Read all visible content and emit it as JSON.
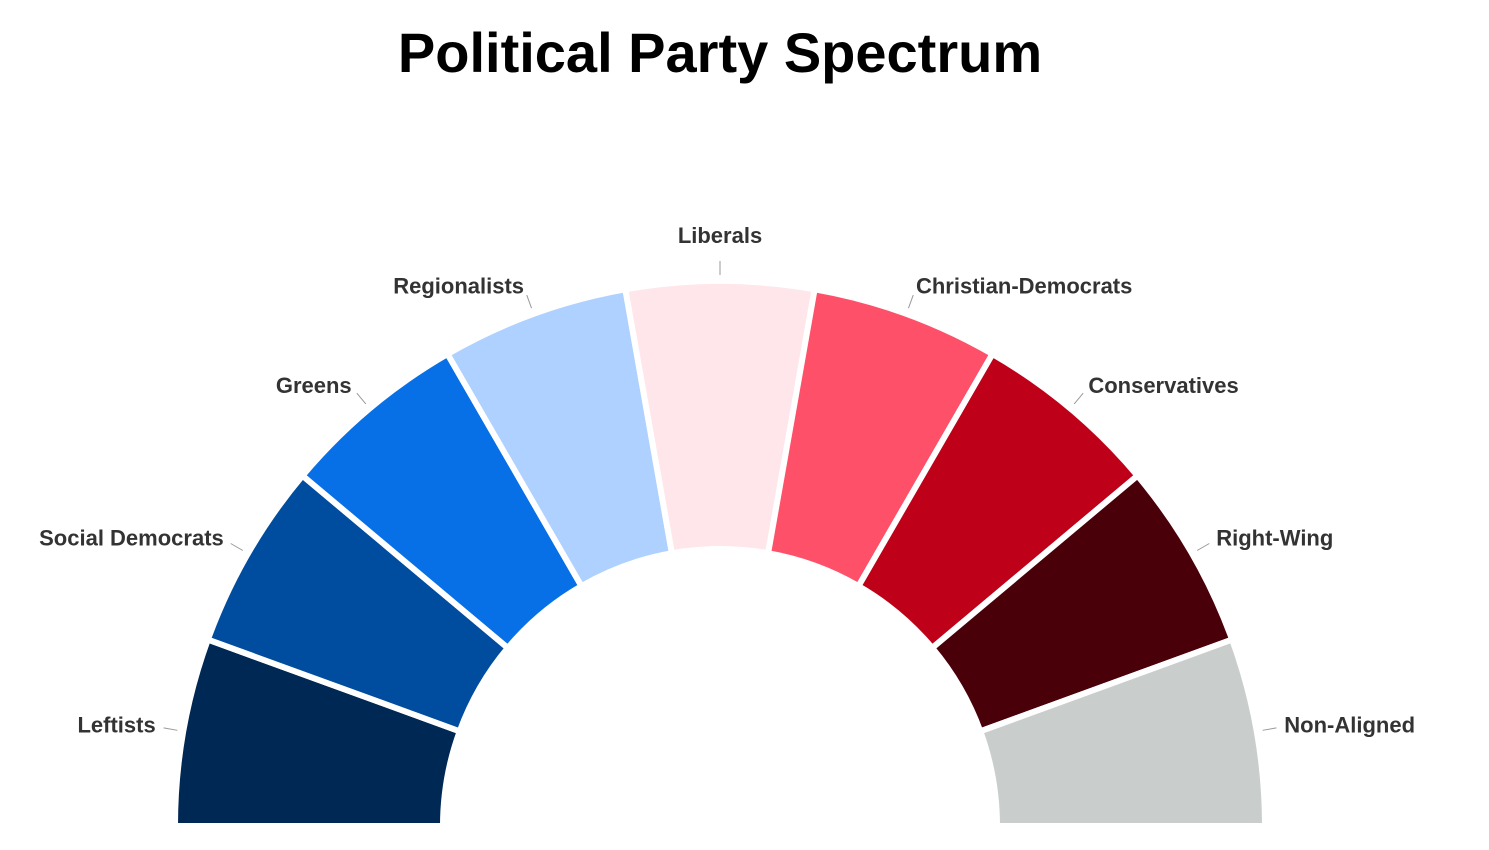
{
  "chart_data": {
    "type": "semi-donut",
    "title": "Political Party Spectrum",
    "categories": [
      "Leftists",
      "Social Democrats",
      "Greens",
      "Regionalists",
      "Liberals",
      "Christian-Democrats",
      "Conservatives",
      "Right-Wing",
      "Non-Aligned"
    ],
    "values": [
      11.1,
      11.1,
      11.1,
      11.1,
      11.1,
      11.1,
      11.1,
      11.1,
      11.1
    ],
    "colors": [
      "#002855",
      "#004c9f",
      "#0870e6",
      "#aed1ff",
      "#fee6eb",
      "#fe5068",
      "#be0018",
      "#4a0009",
      "#c9cecc"
    ]
  }
}
